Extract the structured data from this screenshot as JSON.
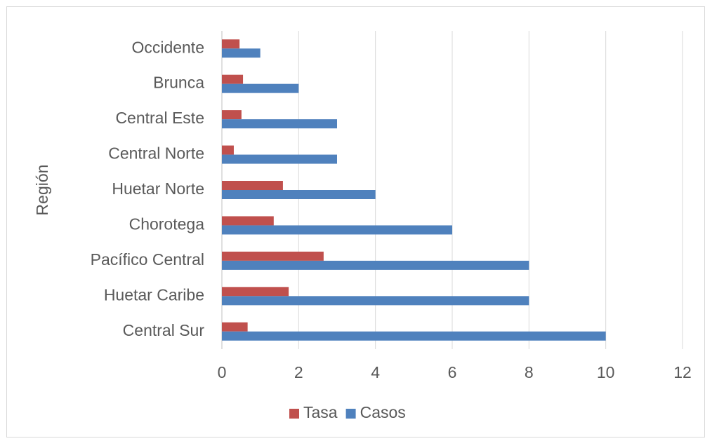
{
  "chart_data": {
    "type": "bar",
    "orientation": "horizontal",
    "y_label": "Región",
    "categories": [
      "Occidente",
      "Brunca",
      "Central Este",
      "Central Norte",
      "Huetar Norte",
      "Chorotega",
      "Pacífico Central",
      "Huetar Caribe",
      "Central Sur"
    ],
    "series": [
      {
        "name": "Tasa",
        "color": "#c0504d",
        "values": [
          0.46,
          0.55,
          0.51,
          0.31,
          1.59,
          1.35,
          2.65,
          1.74,
          0.67
        ]
      },
      {
        "name": "Casos",
        "color": "#4f81bd",
        "values": [
          1,
          2,
          3,
          3,
          4,
          6,
          8,
          8,
          10
        ]
      }
    ],
    "xlim": [
      0,
      12
    ],
    "xticks": [
      0,
      2,
      4,
      6,
      8,
      10,
      12
    ],
    "grid": true,
    "legend": "bottom"
  }
}
